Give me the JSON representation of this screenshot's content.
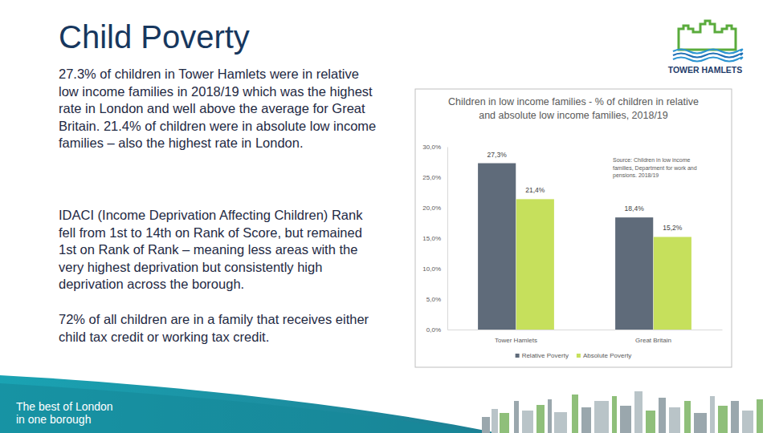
{
  "slide": {
    "title": "Child Poverty",
    "paragraphs": [
      "27.3% of children in Tower Hamlets were in relative low income families in 2018/19 which was the highest rate in London and well above the average for Great Britain.  21.4% of children were in absolute low income families – also the highest rate in London.",
      "IDACI (Income Deprivation Affecting Children) Rank fell from 1st to 14th on Rank of Score, but remained 1st on Rank of Rank – meaning less areas with the very highest deprivation but consistently high deprivation across the borough.",
      "72% of all children are in a family that receives either child tax credit or working tax credit."
    ],
    "logo_text": "TOWER HAMLETS",
    "footer_lines": [
      "The best of London",
      "in one borough"
    ]
  },
  "chart_data": {
    "type": "bar",
    "title": "Children in low income families - % of children in relative and absolute low income families, 2018/19",
    "categories": [
      "Tower Hamlets",
      "Great Britain"
    ],
    "series": [
      {
        "name": "Relative Poverty",
        "color": "#5f6b7a",
        "values": [
          27.3,
          18.4
        ],
        "value_labels": [
          "27,3%",
          "18,4%"
        ]
      },
      {
        "name": "Absolute Poverty",
        "color": "#c6e05c",
        "values": [
          21.4,
          15.2
        ],
        "value_labels": [
          "21,4%",
          "15,2%"
        ]
      }
    ],
    "ylim": [
      0,
      30
    ],
    "yticks": [
      {
        "value": 0,
        "label": "0,0%"
      },
      {
        "value": 5,
        "label": "5,0%"
      },
      {
        "value": 10,
        "label": "10,0%"
      },
      {
        "value": 15,
        "label": "15,0%"
      },
      {
        "value": 20,
        "label": "20,0%"
      },
      {
        "value": 25,
        "label": "25,0%"
      },
      {
        "value": 30,
        "label": "30,0%"
      }
    ],
    "grid": false,
    "legend": "bottom",
    "data_labels": true,
    "annotation": "Source: Children in low income families, Department for work and pensions. 2018/19"
  }
}
